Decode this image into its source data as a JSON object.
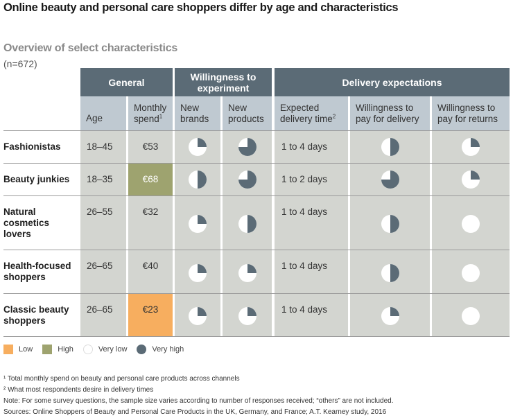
{
  "title": "Online beauty and personal care shoppers differ by age and characteristics",
  "subtitle": "Overview of select characteristics",
  "sample": "(n=672)",
  "colors": {
    "header_dark": "#5b6b76",
    "header_light": "#bfc9d1",
    "cell_bg": "#d3d5d0",
    "low": "#f7ae5f",
    "high": "#9ea36f",
    "pie_fill": "#5b6b76",
    "pie_empty": "#ffffff"
  },
  "groups": {
    "general": "General",
    "experiment": "Willingness to experiment",
    "delivery": "Delivery expectations"
  },
  "columns": {
    "age": "Age",
    "spend": "Monthly spend",
    "spend_sup": "1",
    "new_brands": "New brands",
    "new_products": "New products",
    "delivery_time": "Expected delivery time",
    "delivery_time_sup": "2",
    "pay_delivery": "Willingness to pay for delivery",
    "pay_returns": "Willingness to pay for returns"
  },
  "legend": {
    "low": "Low",
    "high": "High",
    "very_low": "Very low",
    "very_high": "Very high"
  },
  "footnotes": [
    "¹ Total monthly spend on beauty and personal care products across channels",
    "² What most respondents desire in delivery times",
    "Note: For some survey questions, the sample size varies according to number of responses received; “others” are not included.",
    "Sources: Online Shoppers of Beauty and Personal Care Products in the UK, Germany, and France; A.T. Kearney study, 2016"
  ],
  "chart_data": {
    "type": "table",
    "title": "Overview of select characteristics",
    "scale_note": "Pie fill fraction: 0 = very low, 1 = very high",
    "rows": [
      {
        "segment": "Fashionistas",
        "age": "18–45",
        "spend": "€53",
        "spend_level": "",
        "new_brands": 0.25,
        "new_products": 0.75,
        "delivery_time": "1 to 4 days",
        "pay_delivery": 0.5,
        "pay_returns": 0.25
      },
      {
        "segment": "Beauty junkies",
        "age": "18–35",
        "spend": "€68",
        "spend_level": "high",
        "new_brands": 0.5,
        "new_products": 0.75,
        "delivery_time": "1 to 2 days",
        "pay_delivery": 0.75,
        "pay_returns": 0.25
      },
      {
        "segment": "Natural cosmetics lovers",
        "age": "26–55",
        "spend": "€32",
        "spend_level": "",
        "new_brands": 0.25,
        "new_products": 0.5,
        "delivery_time": "1 to 4 days",
        "pay_delivery": 0.5,
        "pay_returns": 0
      },
      {
        "segment": "Health-focused shoppers",
        "age": "26–65",
        "spend": "€40",
        "spend_level": "",
        "new_brands": 0.25,
        "new_products": 0.25,
        "delivery_time": "1 to 4 days",
        "pay_delivery": 0.5,
        "pay_returns": 0
      },
      {
        "segment": "Classic beauty shoppers",
        "age": "26–65",
        "spend": "€23",
        "spend_level": "low",
        "new_brands": 0.25,
        "new_products": 0.25,
        "delivery_time": "1 to 4 days",
        "pay_delivery": 0.25,
        "pay_returns": 0
      }
    ]
  }
}
